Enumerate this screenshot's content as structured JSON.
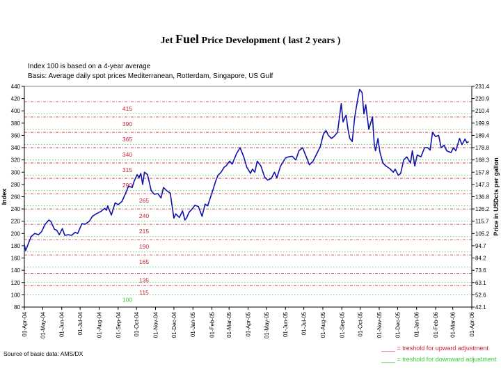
{
  "title": {
    "part1": "Jet ",
    "part2": "Fuel",
    "part3": " Price Development ( last 2 years )"
  },
  "notes": [
    "Index 100 is based on a 4-year average",
    "Basis: Average daily spot prices Mediterranean, Rotterdam, Singapore, US Gulf"
  ],
  "source": "Source of basic data: AMS/DX",
  "legend": {
    "upward": "____ = treshold for upward adjustment",
    "downward": "____ = treshold for downward adjustment",
    "upward_color": "#cc2233",
    "downward_color": "#33cc33"
  },
  "chart_data": {
    "type": "line",
    "ylabel": "Index",
    "y2label": "Price in USDcts per gallon",
    "ylim": [
      80,
      440
    ],
    "yticks": [
      80,
      100,
      120,
      140,
      160,
      180,
      200,
      220,
      240,
      260,
      280,
      300,
      320,
      340,
      360,
      380,
      400,
      420,
      440
    ],
    "y2ticks": [
      "42.1",
      "52.6",
      "63.1",
      "73.6",
      "84.2",
      "94.7",
      "105.2",
      "115.7",
      "126.2",
      "136.8",
      "147.3",
      "157.8",
      "168.3",
      "178.8",
      "189.4",
      "199.9",
      "210.4",
      "220.9",
      "231.4"
    ],
    "xlim": [
      "2004-04-01",
      "2006-04-01"
    ],
    "xticks": [
      "01-Apr-04",
      "01-May-04",
      "01-Jun-04",
      "01-Jul-04",
      "01-Aug-04",
      "01-Sep-04",
      "01-Oct-04",
      "01-Nov-04",
      "01-Dec-04",
      "01-Jan-05",
      "01-Feb-05",
      "01-Mar-05",
      "01-Apr-05",
      "01-May-05",
      "01-Jun-05",
      "01-Jul-05",
      "01-Aug-05",
      "01-Sep-05",
      "01-Oct-05",
      "01-Nov-05",
      "01-Dec-05",
      "01-Jan-06",
      "01-Feb-06",
      "01-Mar-06",
      "01-Apr-06"
    ],
    "xtick_dates": [
      "2004-04-01",
      "2004-05-01",
      "2004-06-01",
      "2004-07-01",
      "2004-08-01",
      "2004-09-01",
      "2004-10-01",
      "2004-11-01",
      "2004-12-01",
      "2005-01-01",
      "2005-02-01",
      "2005-03-01",
      "2005-04-01",
      "2005-05-01",
      "2005-06-01",
      "2005-07-01",
      "2005-08-01",
      "2005-09-01",
      "2005-10-01",
      "2005-11-01",
      "2005-12-01",
      "2006-01-01",
      "2006-02-01",
      "2006-03-01",
      "2006-04-01"
    ],
    "upward_thresholds": [
      415,
      390,
      365,
      340,
      315,
      290,
      265,
      240,
      215,
      190,
      165,
      135,
      115
    ],
    "upward_labels": [
      "415",
      "390",
      "365",
      "340",
      "315",
      "290",
      "265",
      "240",
      "215",
      "190",
      "165",
      "135",
      "115"
    ],
    "downward_thresholds": [
      395,
      370,
      345,
      320,
      295,
      270,
      245,
      220,
      195,
      170,
      145,
      120,
      100
    ],
    "downward_label": "100",
    "series_color": "#1010aa",
    "series": [
      {
        "x": [
          "2004-04-01",
          "2004-04-03",
          "2004-04-12",
          "2004-04-18",
          "2004-04-24",
          "2004-04-29",
          "2004-05-05",
          "2004-05-11",
          "2004-05-14",
          "2004-05-20",
          "2004-05-24",
          "2004-05-28",
          "2004-06-02",
          "2004-06-06",
          "2004-06-12",
          "2004-06-17",
          "2004-06-23",
          "2004-06-27",
          "2004-07-04",
          "2004-07-09",
          "2004-07-16",
          "2004-07-21",
          "2004-07-27",
          "2004-08-04",
          "2004-08-10",
          "2004-08-13",
          "2004-08-15",
          "2004-08-21",
          "2004-08-27",
          "2004-09-01",
          "2004-09-07",
          "2004-09-13",
          "2004-09-18",
          "2004-09-24",
          "2004-09-27",
          "2004-10-02",
          "2004-10-05",
          "2004-10-08",
          "2004-10-11",
          "2004-10-14",
          "2004-10-19",
          "2004-10-25",
          "2004-10-30",
          "2004-11-05",
          "2004-11-10",
          "2004-11-14",
          "2004-11-19",
          "2004-11-25",
          "2004-12-01",
          "2004-12-04",
          "2004-12-10",
          "2004-12-15",
          "2004-12-19",
          "2004-12-22",
          "2004-12-26",
          "2004-12-31",
          "2005-01-04",
          "2005-01-10",
          "2005-01-16",
          "2005-01-21",
          "2005-01-25",
          "2005-01-30",
          "2005-02-03",
          "2005-02-07",
          "2005-02-11",
          "2005-02-16",
          "2005-02-21",
          "2005-02-24",
          "2005-03-02",
          "2005-03-06",
          "2005-03-13",
          "2005-03-19",
          "2005-03-25",
          "2005-03-30",
          "2005-04-05",
          "2005-04-08",
          "2005-04-12",
          "2005-04-16",
          "2005-04-22",
          "2005-04-28",
          "2005-05-03",
          "2005-05-09",
          "2005-05-14",
          "2005-05-18",
          "2005-05-24",
          "2005-06-01",
          "2005-06-06",
          "2005-06-12",
          "2005-06-18",
          "2005-06-23",
          "2005-06-29",
          "2005-07-05",
          "2005-07-10",
          "2005-07-16",
          "2005-07-22",
          "2005-07-28",
          "2005-08-02",
          "2005-08-06",
          "2005-08-10",
          "2005-08-15",
          "2005-08-19",
          "2005-08-25",
          "2005-08-31",
          "2005-09-03",
          "2005-09-08",
          "2005-09-11",
          "2005-09-14",
          "2005-09-18",
          "2005-09-22",
          "2005-09-27",
          "2005-09-30",
          "2005-10-04",
          "2005-10-07",
          "2005-10-10",
          "2005-10-15",
          "2005-10-21",
          "2005-10-24",
          "2005-10-26",
          "2005-10-30",
          "2005-11-02",
          "2005-11-07",
          "2005-11-12",
          "2005-11-18",
          "2005-11-24",
          "2005-11-27",
          "2005-12-02",
          "2005-12-06",
          "2005-12-11",
          "2005-12-16",
          "2005-12-22",
          "2005-12-25",
          "2005-12-29",
          "2006-01-02",
          "2006-01-08",
          "2006-01-14",
          "2006-01-19",
          "2006-01-23",
          "2006-01-27",
          "2006-02-01",
          "2006-02-06",
          "2006-02-10",
          "2006-02-15",
          "2006-02-19",
          "2006-02-26",
          "2006-03-02",
          "2006-03-06",
          "2006-03-12",
          "2006-03-16",
          "2006-03-21",
          "2006-03-24",
          "2006-03-27"
        ],
        "y": [
          182,
          172,
          195,
          200,
          198,
          203,
          215,
          222,
          220,
          207,
          205,
          198,
          208,
          197,
          198,
          197,
          202,
          200,
          216,
          215,
          220,
          228,
          232,
          236,
          241,
          238,
          245,
          230,
          250,
          247,
          252,
          265,
          277,
          275,
          285,
          296,
          291,
          298,
          280,
          300,
          296,
          270,
          264,
          265,
          258,
          275,
          270,
          266,
          225,
          232,
          226,
          237,
          222,
          226,
          235,
          240,
          246,
          244,
          228,
          248,
          245,
          260,
          272,
          285,
          295,
          300,
          308,
          310,
          318,
          313,
          330,
          340,
          325,
          308,
          298,
          305,
          300,
          318,
          310,
          292,
          287,
          290,
          300,
          291,
          310,
          323,
          325,
          326,
          320,
          335,
          340,
          325,
          312,
          318,
          330,
          342,
          362,
          368,
          360,
          355,
          358,
          365,
          412,
          382,
          393,
          370,
          355,
          350,
          390,
          420,
          435,
          430,
          395,
          410,
          370,
          390,
          345,
          335,
          355,
          333,
          315,
          310,
          306,
          300,
          305,
          295,
          298,
          320,
          325,
          315,
          335,
          310,
          328,
          325,
          340,
          340,
          336,
          365,
          358,
          360,
          340,
          344,
          335,
          332,
          340,
          335,
          355,
          345,
          354,
          348,
          350
        ]
      }
    ]
  }
}
